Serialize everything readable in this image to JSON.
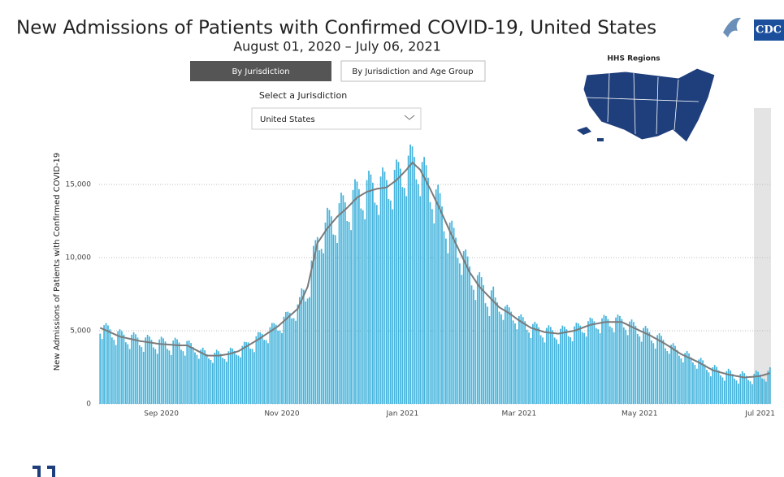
{
  "header": {
    "by_jurisdiction": "By Jurisdiction",
    "by_age_group": "By Jurisdiction and Age Group",
    "select_label": "Select a Jurisdiction",
    "selected": "United States",
    "map_title": "HHS Regions",
    "logo": "CDC"
  },
  "chart_data": {
    "type": "bar",
    "title": "New Admissions of Patients with Confirmed COVID-19, United States",
    "subtitle": "August 01, 2020 – July 06, 2021",
    "ylabel": "New Admissions of Patients with Confirmed COVID-19",
    "categories": [
      null,
      null,
      null,
      null,
      null,
      null,
      null,
      null,
      null,
      null,
      null,
      null,
      null,
      null,
      null,
      null,
      null,
      null,
      null,
      null,
      null,
      null,
      null,
      null,
      null,
      null,
      null,
      null,
      null,
      null,
      null,
      "Sep 2020",
      null,
      null,
      null,
      null,
      null,
      null,
      null,
      null,
      null,
      null,
      null,
      null,
      null,
      null,
      null,
      null,
      null,
      null,
      null,
      null,
      null,
      null,
      null,
      null,
      null,
      null,
      null,
      null,
      null,
      null,
      null,
      null,
      null,
      null,
      null,
      null,
      null,
      null,
      null,
      null,
      null,
      null,
      null,
      null,
      null,
      null,
      null,
      null,
      null,
      null,
      null,
      null,
      null,
      null,
      null,
      null,
      null,
      null,
      null,
      null,
      "Nov 2020",
      null,
      null,
      null,
      null,
      null,
      null,
      null,
      null,
      null,
      null,
      null,
      null,
      null,
      null,
      null,
      null,
      null,
      null,
      null,
      null,
      null,
      null,
      null,
      null,
      null,
      null,
      null,
      null,
      null,
      null,
      null,
      null,
      null,
      null,
      null,
      null,
      null,
      null,
      null,
      null,
      null,
      null,
      null,
      null,
      null,
      null,
      null,
      null,
      null,
      null,
      null,
      null,
      null,
      null,
      null,
      null,
      null,
      null,
      null,
      null,
      "Jan 2021",
      null,
      null,
      null,
      null,
      null,
      null,
      null,
      null,
      null,
      null,
      null,
      null,
      null,
      null,
      null,
      null,
      null,
      null,
      null,
      null,
      null,
      null,
      null,
      null,
      null,
      null,
      null,
      null,
      null,
      null,
      null,
      null,
      null,
      null,
      null,
      null,
      null,
      null,
      null,
      null,
      null,
      null,
      null,
      null,
      null,
      null,
      null,
      null,
      null,
      null,
      null,
      null,
      null,
      null,
      null,
      null,
      null,
      null,
      "Mar 2021",
      null,
      null,
      null,
      null,
      null,
      null,
      null,
      null,
      null,
      null,
      null,
      null,
      null,
      null,
      null,
      null,
      null,
      null,
      null,
      null,
      null,
      null,
      null,
      null,
      null,
      null,
      null,
      null,
      null,
      null,
      null,
      null,
      null,
      null,
      null,
      null,
      null,
      null,
      null,
      null,
      null,
      null,
      null,
      null,
      null,
      null,
      null,
      null,
      null,
      null,
      null,
      null,
      null,
      null,
      null,
      null,
      null,
      null,
      null,
      null,
      "May 2021",
      null,
      null,
      null,
      null,
      null,
      null,
      null,
      null,
      null,
      null,
      null,
      null,
      null,
      null,
      null,
      null,
      null,
      null,
      null,
      null,
      null,
      null,
      null,
      null,
      null,
      null,
      null,
      null,
      null,
      null,
      null,
      null,
      null,
      null,
      null,
      null,
      null,
      null,
      null,
      null,
      null,
      null,
      null,
      null,
      null,
      null,
      null,
      null,
      null,
      null,
      null,
      null,
      null,
      null,
      null,
      null,
      null,
      null,
      null,
      null,
      "Jul 2021",
      null,
      null,
      null,
      null,
      null
    ],
    "series": [
      {
        "type": "bar",
        "color": "#45b4dc",
        "values": [
          4800,
          4440,
          5380,
          5520,
          5360,
          5100,
          4540,
          4380,
          4020,
          4960,
          5100,
          4970,
          4740,
          4210,
          4080,
          3750,
          4720,
          4890,
          4760,
          4530,
          4000,
          3880,
          3560,
          4540,
          4720,
          4600,
          4380,
          3860,
          3740,
          3420,
          4400,
          4590,
          4480,
          4270,
          3760,
          3650,
          3340,
          4330,
          4520,
          4410,
          4200,
          3700,
          3600,
          3300,
          4300,
          4330,
          4160,
          3890,
          3520,
          3350,
          3080,
          3710,
          3840,
          3670,
          3400,
          3100,
          3000,
          2800,
          3500,
          3700,
          3600,
          3420,
          3140,
          3060,
          2880,
          3600,
          3840,
          3780,
          3620,
          3360,
          3300,
          3180,
          3960,
          4240,
          4220,
          4200,
          3780,
          3760,
          3540,
          4620,
          4900,
          4890,
          4780,
          4370,
          4360,
          4150,
          5240,
          5530,
          5520,
          5410,
          5000,
          5020,
          4840,
          5960,
          6280,
          6300,
          6220,
          5840,
          5860,
          5680,
          6800,
          7300,
          7900,
          7800,
          7000,
          7200,
          7300,
          9800,
          10800,
          11200,
          11400,
          10500,
          10600,
          10300,
          12400,
          13400,
          13260,
          12820,
          11580,
          11540,
          11000,
          13720,
          14440,
          14260,
          13780,
          12500,
          12440,
          11880,
          14620,
          15360,
          15200,
          14680,
          13360,
          13240,
          12620,
          15300,
          15940,
          15680,
          15120,
          13760,
          13600,
          12920,
          15540,
          16160,
          15880,
          15300,
          14000,
          13900,
          13300,
          16000,
          16700,
          16540,
          16080,
          14820,
          14760,
          14200,
          16970,
          17730,
          17600,
          16880,
          15350,
          15030,
          14200,
          16540,
          16880,
          16320,
          15460,
          13800,
          13320,
          12340,
          14660,
          14980,
          14400,
          13500,
          11800,
          11300,
          10300,
          12400,
          12520,
          12040,
          11360,
          9980,
          9600,
          8820,
          10440,
          10560,
          10080,
          9400,
          8100,
          7800,
          7100,
          8800,
          9000,
          8660,
          8120,
          6880,
          6640,
          6000,
          7760,
          8020,
          7280,
          6940,
          6300,
          6120,
          5740,
          6660,
          6780,
          6600,
          6300,
          5700,
          5500,
          5100,
          6000,
          6120,
          5930,
          5650,
          5070,
          4880,
          4500,
          5460,
          5610,
          5470,
          5230,
          4690,
          4540,
          4200,
          5190,
          5370,
          5260,
          5040,
          4530,
          4410,
          4100,
          5130,
          5350,
          5280,
          5100,
          4630,
          4550,
          4280,
          5300,
          5550,
          5500,
          5350,
          4900,
          4850,
          4600,
          5650,
          5900,
          5830,
          5650,
          5180,
          5100,
          4830,
          5850,
          6080,
          6000,
          5800,
          5300,
          5200,
          4900,
          5900,
          6100,
          6000,
          5800,
          5230,
          5070,
          4700,
          5630,
          5770,
          5600,
          5340,
          4780,
          4610,
          4250,
          5190,
          5330,
          5160,
          4900,
          4330,
          4150,
          3780,
          4700,
          4830,
          4650,
          4380,
          3800,
          3610,
          3430,
          4040,
          4150,
          3960,
          3680,
          3290,
          3100,
          2840,
          3480,
          3610,
          3450,
          3190,
          2830,
          2660,
          2400,
          3030,
          3150,
          2980,
          2700,
          2330,
          2150,
          1880,
          2500,
          2660,
          2530,
          2290,
          1950,
          1810,
          1580,
          2240,
          2400,
          2280,
          2050,
          1730,
          1600,
          1380,
          2050,
          2230,
          2100,
          1910,
          1630,
          1540,
          1350,
          2060,
          2280,
          2190,
          2000,
          1740,
          1680,
          1520,
          2260,
          2500
        ]
      },
      {
        "type": "line",
        "color": "#7a7a7a",
        "values": [
          5200,
          5140,
          5080,
          5020,
          4960,
          4900,
          4840,
          4780,
          4720,
          4660,
          4600,
          4570,
          4540,
          4510,
          4480,
          4450,
          4420,
          4390,
          4360,
          4330,
          4300,
          4280,
          4260,
          4240,
          4220,
          4200,
          4180,
          4160,
          4140,
          4120,
          4100,
          4090,
          4080,
          4070,
          4060,
          4050,
          4040,
          4030,
          4020,
          4010,
          4000,
          4000,
          4000,
          4000,
          4000,
          3930,
          3860,
          3790,
          3720,
          3650,
          3580,
          3510,
          3440,
          3370,
          3300,
          3300,
          3300,
          3300,
          3300,
          3300,
          3300,
          3320,
          3340,
          3360,
          3380,
          3400,
          3440,
          3480,
          3520,
          3560,
          3600,
          3680,
          3760,
          3840,
          3920,
          4000,
          4080,
          4160,
          4240,
          4320,
          4400,
          4490,
          4580,
          4670,
          4760,
          4850,
          4940,
          5030,
          5120,
          5210,
          5300,
          5420,
          5540,
          5660,
          5780,
          5900,
          6020,
          6140,
          6260,
          6380,
          6500,
          6800,
          7100,
          7400,
          7700,
          8000,
          8600,
          9200,
          9800,
          10400,
          11000,
          11200,
          11400,
          11600,
          11800,
          12000,
          12160,
          12320,
          12480,
          12640,
          12800,
          12920,
          13040,
          13160,
          13280,
          13400,
          13540,
          13680,
          13820,
          13960,
          14100,
          14180,
          14260,
          14340,
          14420,
          14500,
          14540,
          14580,
          14620,
          14660,
          14700,
          14720,
          14740,
          14760,
          14780,
          14800,
          14900,
          15000,
          15100,
          15200,
          15300,
          15440,
          15580,
          15720,
          15860,
          16000,
          16170,
          16330,
          16500,
          16380,
          16250,
          16130,
          16000,
          15740,
          15480,
          15220,
          14960,
          14700,
          14420,
          14140,
          13860,
          13580,
          13300,
          13000,
          12700,
          12400,
          12100,
          11800,
          11520,
          11240,
          10960,
          10680,
          10400,
          10120,
          9840,
          9560,
          9280,
          9000,
          8800,
          8600,
          8400,
          8200,
          8000,
          7860,
          7720,
          7580,
          7440,
          7300,
          7160,
          7020,
          6880,
          6740,
          6600,
          6520,
          6440,
          6360,
          6280,
          6200,
          6100,
          6000,
          5900,
          5800,
          5700,
          5620,
          5530,
          5450,
          5370,
          5280,
          5200,
          5160,
          5110,
          5070,
          5030,
          4990,
          4940,
          4900,
          4890,
          4870,
          4860,
          4840,
          4830,
          4810,
          4800,
          4830,
          4850,
          4880,
          4900,
          4930,
          4950,
          4980,
          5000,
          5050,
          5100,
          5150,
          5200,
          5250,
          5300,
          5350,
          5400,
          5430,
          5450,
          5480,
          5500,
          5530,
          5550,
          5580,
          5600,
          5600,
          5600,
          5600,
          5600,
          5600,
          5600,
          5600,
          5600,
          5530,
          5470,
          5400,
          5330,
          5270,
          5200,
          5140,
          5080,
          5010,
          4950,
          4890,
          4830,
          4760,
          4700,
          4630,
          4550,
          4480,
          4400,
          4330,
          4250,
          4180,
          4100,
          4010,
          3930,
          3840,
          3750,
          3660,
          3580,
          3490,
          3400,
          3340,
          3280,
          3210,
          3150,
          3090,
          3030,
          2960,
          2900,
          2830,
          2750,
          2680,
          2600,
          2530,
          2450,
          2380,
          2300,
          2260,
          2230,
          2190,
          2150,
          2110,
          2080,
          2040,
          2000,
          1980,
          1950,
          1930,
          1900,
          1880,
          1850,
          1830,
          1800,
          1810,
          1830,
          1840,
          1850,
          1860,
          1880,
          1890,
          1900,
          1940,
          1980,
          2020,
          2060,
          2100
        ]
      }
    ],
    "ylim": [
      0,
      18000
    ],
    "yticks": [
      0,
      {
        "value": 5000,
        "label": "5,000"
      },
      {
        "value": 10000,
        "label": "10,000"
      },
      {
        "value": 15000,
        "label": "15,000"
      }
    ],
    "grid": true
  }
}
